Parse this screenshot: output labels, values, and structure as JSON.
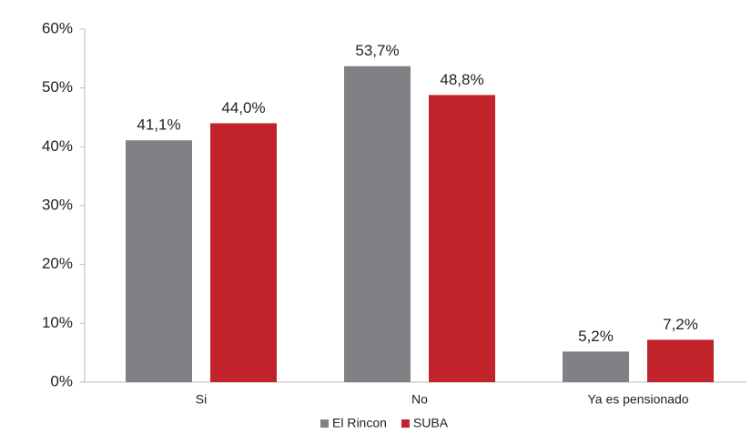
{
  "chart_data": {
    "type": "bar",
    "categories": [
      "Si",
      "No",
      "Ya es pensionado"
    ],
    "series": [
      {
        "name": "El Rincon",
        "color": "#808184",
        "values": [
          41.1,
          53.7,
          5.2
        ],
        "value_labels": [
          "41,1%",
          "53,7%",
          "5,2%"
        ]
      },
      {
        "name": "SUBA",
        "color": "#c1232b",
        "values": [
          44.0,
          48.8,
          7.2
        ],
        "value_labels": [
          "44,0%",
          "48,8%",
          "7,2%"
        ]
      }
    ],
    "ylim": [
      0,
      60
    ],
    "yticks": [
      {
        "value": 0,
        "label": "0%"
      },
      {
        "value": 10,
        "label": "10%"
      },
      {
        "value": 20,
        "label": "20%"
      },
      {
        "value": 30,
        "label": "30%"
      },
      {
        "value": 40,
        "label": "40%"
      },
      {
        "value": 50,
        "label": "50%"
      },
      {
        "value": 60,
        "label": "60%"
      }
    ],
    "legend": "bottom"
  }
}
